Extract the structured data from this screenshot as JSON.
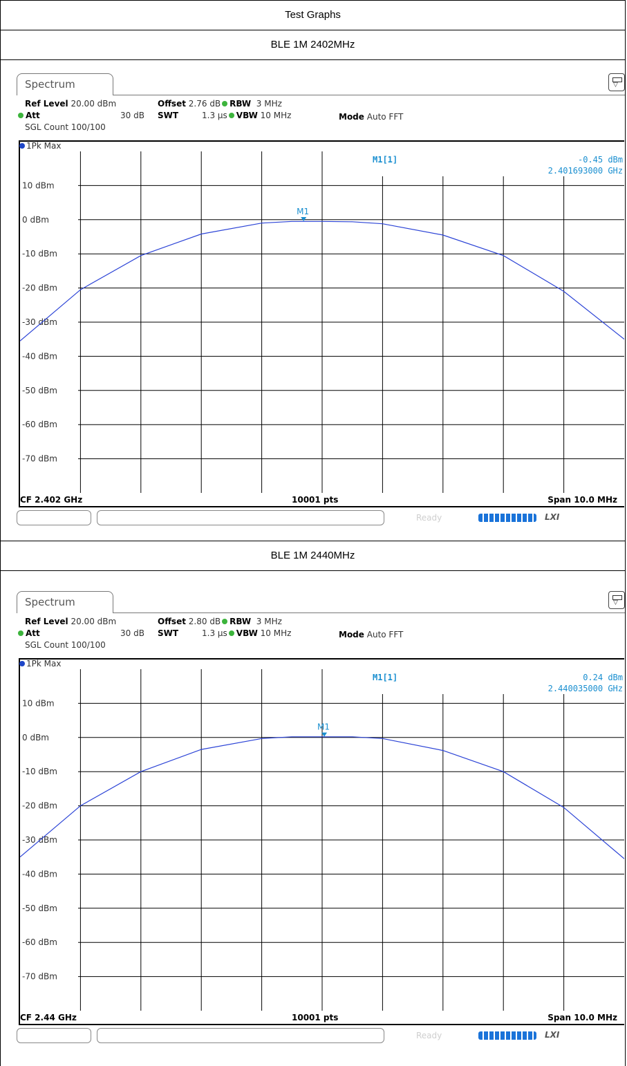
{
  "page_title": "Test Graphs",
  "chart_data": [
    {
      "type": "line",
      "title": "BLE 1M 2402MHz",
      "tab_label": "Spectrum",
      "settings": {
        "ref_level_label": "Ref Level",
        "ref_level_value": "20.00 dBm",
        "offset_label": "Offset",
        "offset_value": "2.76 dB",
        "rbw_label": "RBW",
        "rbw_value": "3 MHz",
        "att_label": "Att",
        "att_value": "30 dB",
        "swt_label": "SWT",
        "swt_value": "1.3 µs",
        "vbw_label": "VBW",
        "vbw_value": "10 MHz",
        "mode_label": "Mode",
        "mode_value": "Auto FFT",
        "sgl_count": "SGL Count 100/100"
      },
      "trace_label": "1Pk Max",
      "marker": {
        "name": "M1",
        "readout_label": "M1[1]",
        "level": "-0.45 dBm",
        "frequency": "2.401693000 GHz",
        "x_mhz": 2401.693,
        "y_dbm": -0.45
      },
      "y_ticks": [
        "10 dBm",
        "0 dBm",
        "-10 dBm",
        "-20 dBm",
        "-30 dBm",
        "-40 dBm",
        "-50 dBm",
        "-60 dBm",
        "-70 dBm"
      ],
      "ylim": [
        -80,
        20
      ],
      "xlim_mhz": [
        2397.0,
        2407.0
      ],
      "footer": {
        "cf": "CF 2.402 GHz",
        "points": "10001 pts",
        "span": "Span 10.0 MHz"
      },
      "series": [
        {
          "x_mhz": [
            2397.0,
            2398.0,
            2399.0,
            2400.0,
            2401.0,
            2401.5,
            2402.0,
            2402.5,
            2403.0,
            2404.0,
            2405.0,
            2406.0,
            2407.0
          ],
          "y_dbm": [
            -35.5,
            -20.5,
            -10.5,
            -4.2,
            -1.0,
            -0.5,
            -0.5,
            -0.6,
            -1.2,
            -4.5,
            -10.5,
            -21.0,
            -35.0
          ]
        }
      ],
      "status": "Ready"
    },
    {
      "type": "line",
      "title": "BLE 1M 2440MHz",
      "tab_label": "Spectrum",
      "settings": {
        "ref_level_label": "Ref Level",
        "ref_level_value": "20.00 dBm",
        "offset_label": "Offset",
        "offset_value": "2.80 dB",
        "rbw_label": "RBW",
        "rbw_value": "3 MHz",
        "att_label": "Att",
        "att_value": "30 dB",
        "swt_label": "SWT",
        "swt_value": "1.3 µs",
        "vbw_label": "VBW",
        "vbw_value": "10 MHz",
        "mode_label": "Mode",
        "mode_value": "Auto FFT",
        "sgl_count": "SGL Count 100/100"
      },
      "trace_label": "1Pk Max",
      "marker": {
        "name": "M1",
        "readout_label": "M1[1]",
        "level": "0.24 dBm",
        "frequency": "2.440035000 GHz",
        "x_mhz": 2440.035,
        "y_dbm": 0.24
      },
      "y_ticks": [
        "10 dBm",
        "0 dBm",
        "-10 dBm",
        "-20 dBm",
        "-30 dBm",
        "-40 dBm",
        "-50 dBm",
        "-60 dBm",
        "-70 dBm"
      ],
      "ylim": [
        -80,
        20
      ],
      "xlim_mhz": [
        2435.0,
        2445.0
      ],
      "footer": {
        "cf": "CF 2.44 GHz",
        "points": "10001 pts",
        "span": "Span 10.0 MHz"
      },
      "series": [
        {
          "x_mhz": [
            2435.0,
            2436.0,
            2437.0,
            2438.0,
            2439.0,
            2439.5,
            2440.0,
            2440.5,
            2441.0,
            2442.0,
            2443.0,
            2444.0,
            2445.0
          ],
          "y_dbm": [
            -35.0,
            -20.0,
            -10.0,
            -3.5,
            -0.3,
            0.2,
            0.2,
            0.2,
            -0.3,
            -3.8,
            -10.0,
            -20.5,
            -35.5
          ]
        }
      ],
      "status": "Ready"
    }
  ]
}
